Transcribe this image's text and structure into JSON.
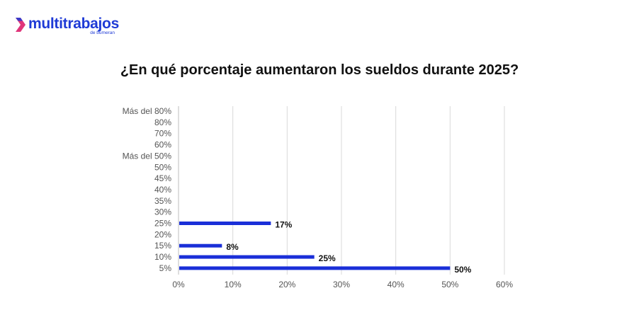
{
  "logo": {
    "text": "multitrabajos",
    "subtext": "de bumeran",
    "brand_color": "#1f3bd6",
    "chevron_color": "#e0357a"
  },
  "chart_data": {
    "type": "bar",
    "orientation": "horizontal",
    "title": "¿En qué porcentaje aumentaron los sueldos durante 2025?",
    "xlabel": "",
    "ylabel": "",
    "categories": [
      "Más del 80%",
      "80%",
      "70%",
      "60%",
      "Más del 50%",
      "50%",
      "45%",
      "40%",
      "35%",
      "30%",
      "25%",
      "20%",
      "15%",
      "10%",
      "5%"
    ],
    "values": [
      0,
      0,
      0,
      0,
      0,
      0,
      0,
      0,
      0,
      0,
      17,
      0,
      8,
      25,
      50
    ],
    "data_labels": [
      "",
      "",
      "",
      "",
      "",
      "",
      "",
      "",
      "",
      "",
      "17%",
      "",
      "8%",
      "25%",
      "50%"
    ],
    "xlim": [
      0,
      60
    ],
    "x_ticks": [
      "0%",
      "10%",
      "20%",
      "30%",
      "40%",
      "50%",
      "60%"
    ],
    "x_tick_values": [
      0,
      10,
      20,
      30,
      40,
      50,
      60
    ],
    "grid": true,
    "bar_color": "#1a2fd8",
    "grid_color": "#d9d9d9"
  }
}
